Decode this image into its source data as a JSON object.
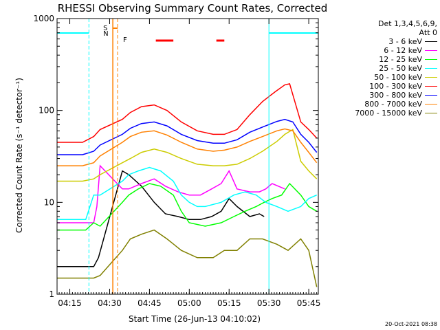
{
  "chart_data": {
    "type": "line",
    "title": "RHESSI Observing Summary Count Rates, Corrected",
    "xlabel": "Start Time (26-Jun-13 04:10:02)",
    "ylabel": "Corrected Count Rate (s⁻¹ detector⁻¹)",
    "ylim": [
      1,
      1000
    ],
    "yscale": "log",
    "xlim": [
      4.17,
      5.81
    ],
    "x_unit": "hour UT",
    "xticks": [
      {
        "label": "04:15",
        "x": 4.25
      },
      {
        "label": "04:30",
        "x": 4.5
      },
      {
        "label": "04:45",
        "x": 4.75
      },
      {
        "label": "05:00",
        "x": 5.0
      },
      {
        "label": "05:15",
        "x": 5.25
      },
      {
        "label": "05:30",
        "x": 5.5
      },
      {
        "label": "05:45",
        "x": 5.75
      }
    ],
    "yticks": [
      {
        "label": "1",
        "y": 1
      },
      {
        "label": "10",
        "y": 10
      },
      {
        "label": "100",
        "y": 100
      },
      {
        "label": "1000",
        "y": 1000
      }
    ],
    "legend_header": [
      "Det 1,3,4,5,6,9,",
      "Att 0"
    ],
    "series": [
      {
        "name": "3 - 6 keV",
        "color": "#000000",
        "x": [
          4.17,
          4.4,
          4.43,
          4.58,
          4.62,
          4.7,
          4.78,
          4.85,
          4.93,
          5.0,
          5.07,
          5.14,
          5.2,
          5.25,
          5.3,
          5.38,
          5.44,
          5.47
        ],
        "y": [
          2,
          2,
          2.5,
          22,
          20,
          15,
          10,
          7.5,
          7,
          6.5,
          6.5,
          7,
          8,
          11,
          9,
          7,
          7.5,
          7
        ]
      },
      {
        "name": "6 - 12 keV",
        "color": "#ff00ff",
        "x": [
          4.17,
          4.4,
          4.42,
          4.44,
          4.58,
          4.62,
          4.7,
          4.78,
          4.85,
          4.93,
          5.0,
          5.07,
          5.14,
          5.2,
          5.25,
          5.3,
          5.38,
          5.44,
          5.48,
          5.52,
          5.6
        ],
        "y": [
          6,
          6,
          9,
          25,
          14,
          14,
          16,
          18,
          15,
          13,
          12,
          12,
          14,
          16,
          22,
          14,
          13,
          13,
          14,
          16,
          14
        ]
      },
      {
        "name": "12 - 25 keV",
        "color": "#00ff00",
        "x": [
          4.17,
          4.35,
          4.4,
          4.44,
          4.58,
          4.62,
          4.68,
          4.75,
          4.82,
          4.9,
          4.95,
          5.0,
          5.1,
          5.2,
          5.28,
          5.35,
          5.42,
          5.47,
          5.52,
          5.58,
          5.63,
          5.7,
          5.75,
          5.8
        ],
        "y": [
          5,
          5,
          6,
          5.5,
          10,
          12,
          14,
          16,
          15,
          12,
          8,
          6,
          5.5,
          6,
          7,
          8,
          9,
          10,
          11,
          12,
          16,
          12,
          9,
          8
        ]
      },
      {
        "name": "25 - 50 keV",
        "color": "#00ffff",
        "x": [
          4.17,
          4.35,
          4.4,
          4.44,
          4.58,
          4.62,
          4.68,
          4.75,
          4.82,
          4.9,
          4.95,
          5.0,
          5.05,
          5.1,
          5.2,
          5.28,
          5.35,
          5.42,
          5.48,
          5.55,
          5.62,
          5.7,
          5.75,
          5.8
        ],
        "y": [
          6.5,
          6.5,
          12,
          12,
          17,
          20,
          22,
          24,
          22,
          17,
          12,
          10,
          9,
          9,
          10,
          12,
          13,
          12,
          10,
          9,
          8,
          9,
          11,
          12
        ]
      },
      {
        "name": "50 - 100 keV",
        "color": "#cccc00",
        "x": [
          4.17,
          4.33,
          4.4,
          4.44,
          4.58,
          4.63,
          4.7,
          4.78,
          4.86,
          4.95,
          5.05,
          5.15,
          5.22,
          5.3,
          5.38,
          5.46,
          5.55,
          5.6,
          5.65,
          5.7,
          5.75,
          5.8
        ],
        "y": [
          17,
          17,
          18,
          20,
          27,
          30,
          35,
          38,
          35,
          30,
          26,
          25,
          25,
          26,
          30,
          36,
          46,
          55,
          62,
          28,
          22,
          18
        ]
      },
      {
        "name": "100 - 300 keV",
        "color": "#ff0000",
        "x": [
          4.17,
          4.33,
          4.4,
          4.44,
          4.58,
          4.63,
          4.7,
          4.78,
          4.86,
          4.95,
          5.05,
          5.15,
          5.22,
          5.3,
          5.38,
          5.46,
          5.54,
          5.6,
          5.63,
          5.7,
          5.75,
          5.8
        ],
        "y": [
          45,
          45,
          52,
          62,
          80,
          95,
          110,
          115,
          100,
          75,
          60,
          55,
          55,
          62,
          90,
          125,
          160,
          190,
          195,
          75,
          62,
          50
        ]
      },
      {
        "name": "300 - 800 keV",
        "color": "#0000ff",
        "x": [
          4.17,
          4.33,
          4.4,
          4.44,
          4.58,
          4.63,
          4.7,
          4.78,
          4.86,
          4.95,
          5.05,
          5.15,
          5.22,
          5.3,
          5.38,
          5.46,
          5.55,
          5.6,
          5.65,
          5.7,
          5.75,
          5.8
        ],
        "y": [
          33,
          33,
          36,
          42,
          55,
          64,
          72,
          75,
          68,
          55,
          47,
          44,
          44,
          48,
          58,
          66,
          76,
          80,
          75,
          55,
          45,
          35
        ]
      },
      {
        "name": "800 - 7000 keV",
        "color": "#ff8000",
        "x": [
          4.17,
          4.33,
          4.4,
          4.44,
          4.58,
          4.63,
          4.7,
          4.78,
          4.86,
          4.95,
          5.05,
          5.15,
          5.22,
          5.3,
          5.38,
          5.46,
          5.55,
          5.6,
          5.65,
          5.7,
          5.75,
          5.8
        ],
        "y": [
          25,
          25,
          27,
          32,
          45,
          52,
          58,
          60,
          54,
          45,
          38,
          36,
          37,
          40,
          46,
          52,
          60,
          63,
          60,
          45,
          35,
          27
        ]
      },
      {
        "name": "7000 - 15000 keV",
        "color": "#808000",
        "x": [
          4.17,
          4.4,
          4.44,
          4.58,
          4.63,
          4.7,
          4.78,
          4.86,
          4.95,
          5.05,
          5.15,
          5.22,
          5.3,
          5.38,
          5.46,
          5.55,
          5.62,
          5.7,
          5.75,
          5.8
        ],
        "y": [
          1.5,
          1.5,
          1.6,
          3,
          4,
          4.5,
          5,
          4,
          3,
          2.5,
          2.5,
          3,
          3,
          4,
          4,
          3.5,
          3,
          4,
          3,
          1.2
        ]
      }
    ],
    "annotations": {
      "saa_label_S": "S",
      "saa_label_N": "N",
      "flare_label": "F",
      "night_intervals": [
        [
          4.17,
          4.37
        ],
        [
          5.5,
          5.81
        ]
      ],
      "saa_interval": [
        4.52,
        4.55
      ],
      "flare_bars": [
        [
          4.79,
          4.9
        ],
        [
          5.17,
          5.22
        ]
      ]
    }
  },
  "footer": {
    "timestamp": "20-Oct-2021 08:38"
  }
}
